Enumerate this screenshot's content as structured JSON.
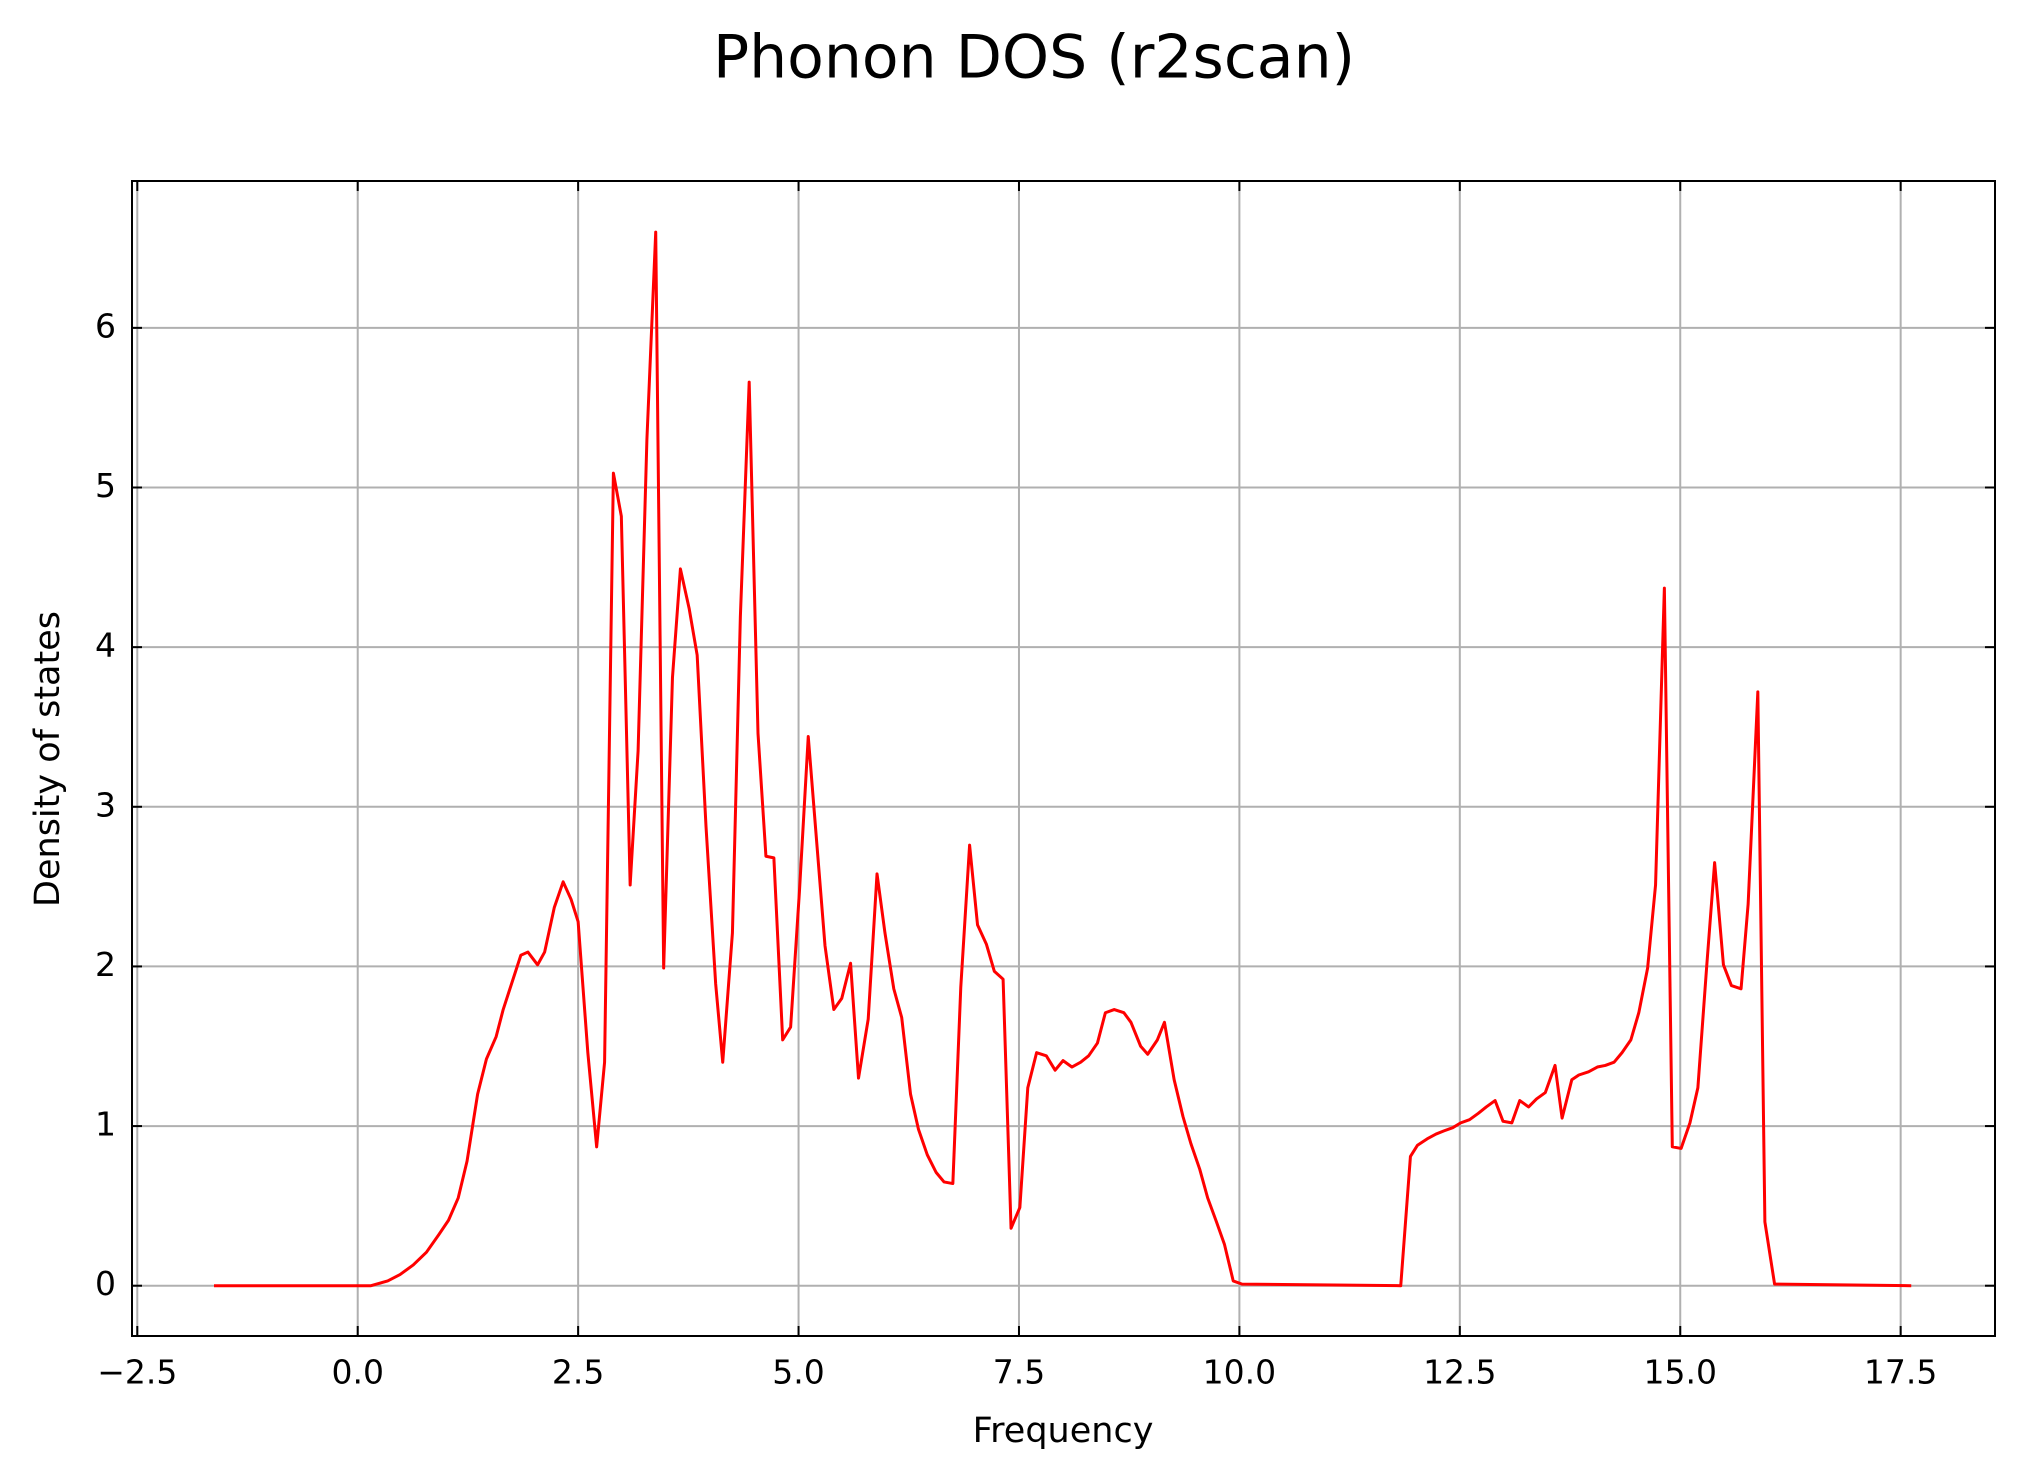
{
  "chart_data": {
    "type": "line",
    "title": "Phonon DOS (r2scan)",
    "xlabel": "Frequency",
    "ylabel": "Density of states",
    "color": "#ff0000",
    "grid": true,
    "xlim": [
      -2.56,
      18.57
    ],
    "ylim": [
      -0.315,
      6.92
    ],
    "xticks": [
      {
        "value": -2.5,
        "label": "−2.5"
      },
      {
        "value": 0,
        "label": "0.0"
      },
      {
        "value": 2.5,
        "label": "2.5"
      },
      {
        "value": 5,
        "label": "5.0"
      },
      {
        "value": 7.5,
        "label": "7.5"
      },
      {
        "value": 10,
        "label": "10.0"
      },
      {
        "value": 12.5,
        "label": "12.5"
      },
      {
        "value": 15,
        "label": "15.0"
      },
      {
        "value": 17.5,
        "label": "17.5"
      }
    ],
    "yticks": [
      0,
      1,
      2,
      3,
      4,
      5,
      6
    ],
    "x": [
      -1.63,
      0.15,
      0.34,
      0.48,
      0.63,
      0.78,
      0.92,
      1.03,
      1.14,
      1.24,
      1.36,
      1.46,
      1.57,
      1.65,
      1.85,
      1.93,
      2.04,
      2.12,
      2.23,
      2.33,
      2.42,
      2.5,
      2.61,
      2.71,
      2.8,
      2.9,
      2.99,
      3.09,
      3.18,
      3.28,
      3.38,
      3.47,
      3.57,
      3.66,
      3.76,
      3.85,
      3.95,
      4.06,
      4.14,
      4.25,
      4.34,
      4.44,
      4.54,
      4.63,
      4.72,
      4.82,
      4.91,
      5.01,
      5.11,
      5.21,
      5.3,
      5.4,
      5.49,
      5.59,
      5.68,
      5.79,
      5.89,
      5.98,
      6.08,
      6.17,
      6.27,
      6.36,
      6.46,
      6.56,
      6.65,
      6.75,
      6.84,
      6.94,
      7.03,
      7.13,
      7.22,
      7.32,
      7.41,
      7.51,
      7.6,
      7.7,
      7.81,
      7.91,
      8.0,
      8.1,
      8.2,
      8.29,
      8.39,
      8.48,
      8.58,
      8.69,
      8.77,
      8.88,
      8.96,
      9.07,
      9.15,
      9.26,
      9.36,
      9.45,
      9.55,
      9.64,
      9.74,
      9.83,
      9.93,
      10.03,
      11.83,
      11.94,
      12.02,
      12.13,
      12.23,
      12.32,
      12.42,
      12.51,
      12.61,
      12.71,
      12.8,
      12.9,
      12.99,
      13.09,
      13.18,
      13.28,
      13.37,
      13.47,
      13.58,
      13.66,
      13.77,
      13.85,
      13.96,
      14.06,
      14.15,
      14.25,
      14.34,
      14.44,
      14.53,
      14.63,
      14.72,
      14.82,
      14.91,
      15.01,
      15.11,
      15.2,
      15.3,
      15.39,
      15.49,
      15.58,
      15.69,
      15.77,
      15.88,
      15.96,
      16.07,
      17.62
    ],
    "values": [
      0,
      0,
      0.03,
      0.07,
      0.13,
      0.21,
      0.32,
      0.41,
      0.55,
      0.78,
      1.2,
      1.42,
      1.56,
      1.73,
      2.07,
      2.09,
      2.01,
      2.09,
      2.37,
      2.53,
      2.42,
      2.28,
      1.46,
      0.87,
      1.4,
      5.09,
      4.82,
      2.51,
      3.35,
      5.3,
      6.6,
      1.99,
      3.81,
      4.49,
      4.24,
      3.95,
      2.88,
      1.89,
      1.4,
      2.21,
      4.19,
      5.66,
      3.46,
      2.69,
      2.68,
      1.54,
      1.62,
      2.47,
      3.44,
      2.75,
      2.13,
      1.73,
      1.8,
      2.02,
      1.3,
      1.67,
      2.58,
      2.21,
      1.86,
      1.68,
      1.2,
      0.98,
      0.82,
      0.71,
      0.65,
      0.64,
      1.87,
      2.76,
      2.26,
      2.14,
      1.97,
      1.92,
      0.36,
      0.49,
      1.24,
      1.46,
      1.44,
      1.35,
      1.41,
      1.37,
      1.4,
      1.44,
      1.52,
      1.71,
      1.73,
      1.71,
      1.65,
      1.5,
      1.45,
      1.54,
      1.65,
      1.29,
      1.06,
      0.89,
      0.73,
      0.55,
      0.4,
      0.26,
      0.03,
      0.01,
      0,
      0.81,
      0.88,
      0.92,
      0.95,
      0.97,
      0.99,
      1.02,
      1.04,
      1.08,
      1.12,
      1.16,
      1.03,
      1.02,
      1.16,
      1.12,
      1.17,
      1.21,
      1.38,
      1.05,
      1.29,
      1.32,
      1.34,
      1.37,
      1.38,
      1.4,
      1.46,
      1.54,
      1.71,
      1.99,
      2.51,
      4.37,
      0.87,
      0.86,
      1.02,
      1.24,
      2.0,
      2.65,
      2.01,
      1.88,
      1.86,
      2.39,
      3.72,
      0.4,
      0.01,
      0
    ]
  }
}
